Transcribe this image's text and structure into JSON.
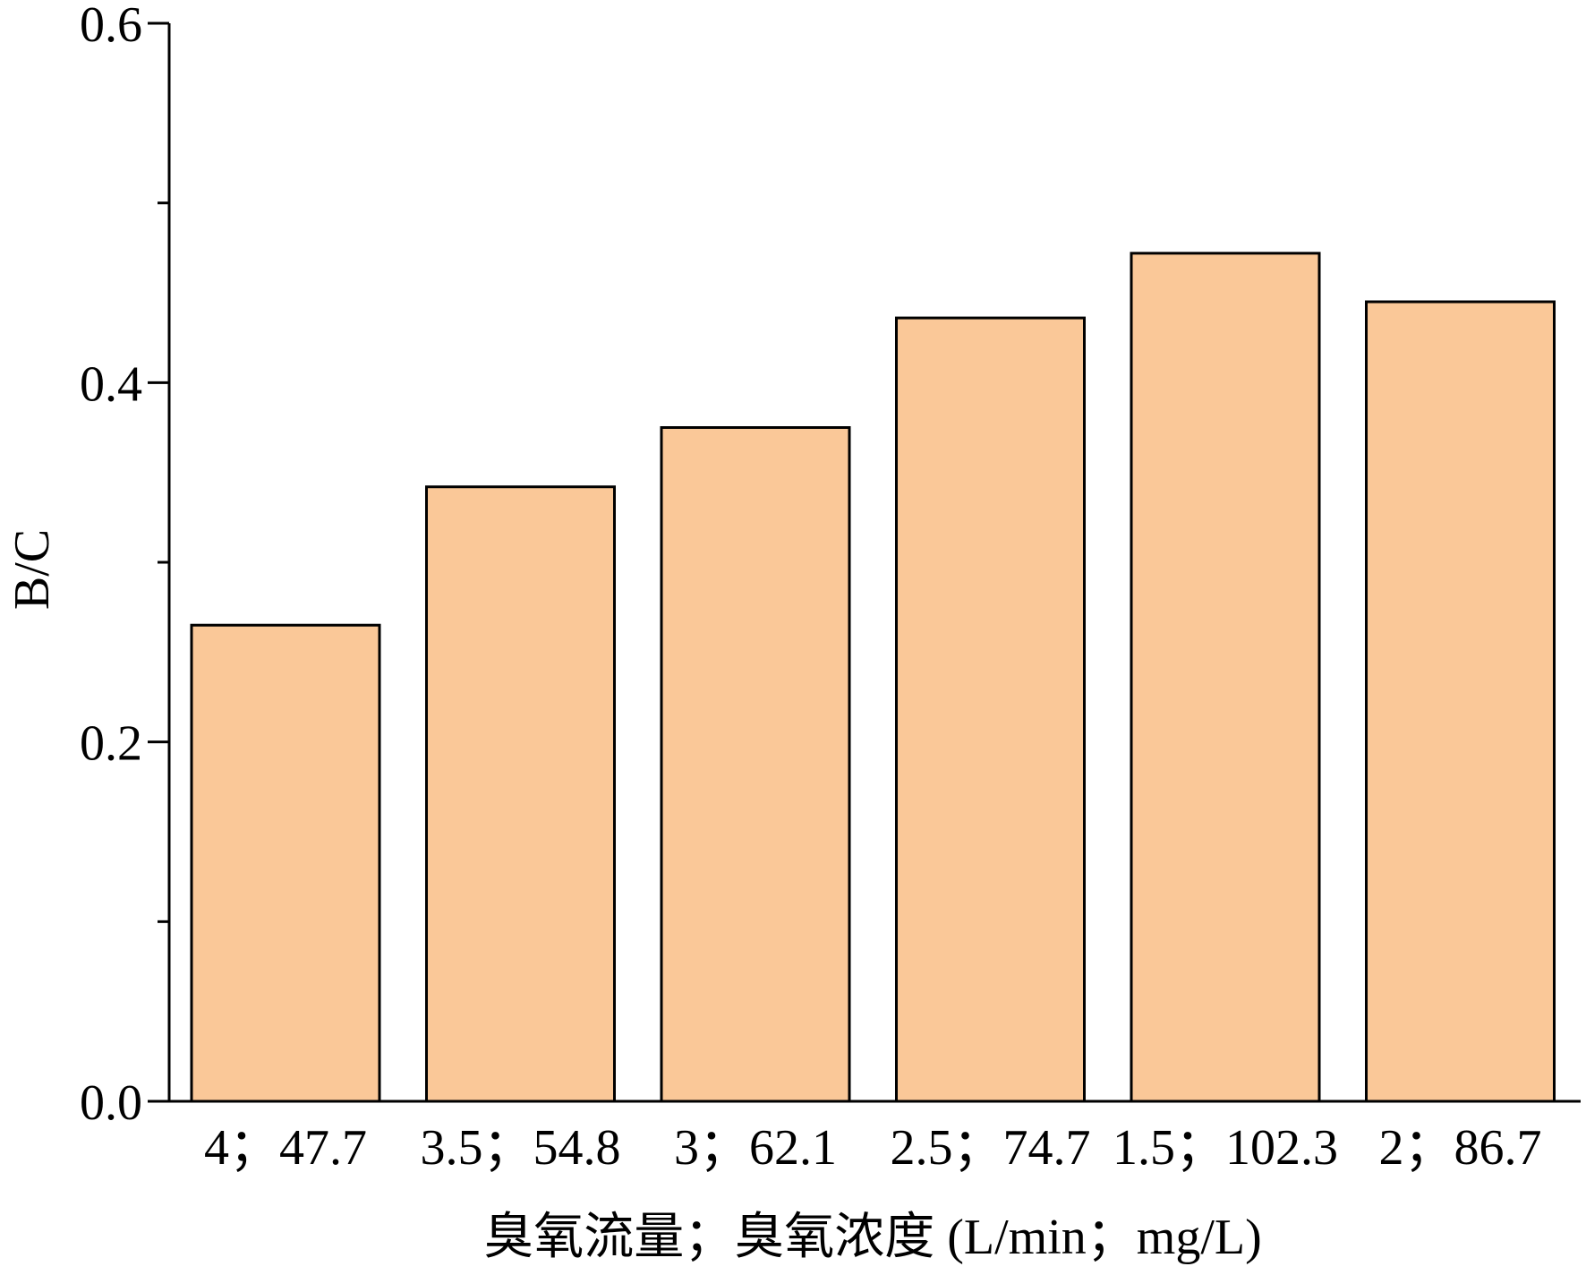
{
  "chart_data": {
    "type": "bar",
    "title": "",
    "xlabel": "臭氧流量；臭氧浓度 (L/min；mg/L)",
    "ylabel": "B/C",
    "categories": [
      "4；47.7",
      "3.5；54.8",
      "3；62.1",
      "2.5；74.7",
      "1.5；102.3",
      "2；86.7"
    ],
    "values": [
      0.265,
      0.342,
      0.375,
      0.436,
      0.472,
      0.445
    ],
    "ylim": [
      0,
      0.6
    ],
    "yticks": [
      "0.0",
      "0.2",
      "0.4",
      "0.6"
    ],
    "grid": false,
    "bar_color": "#FAC898"
  }
}
